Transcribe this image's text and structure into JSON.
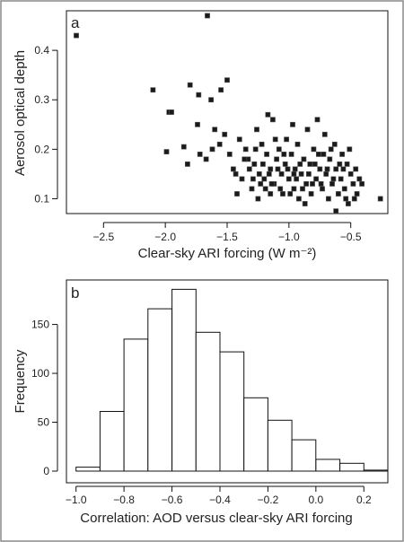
{
  "chart_data": [
    {
      "type": "scatter",
      "panel_label": "a",
      "xlabel": "Clear-sky ARI forcing (W m⁻²)",
      "ylabel": "Aerosol optical depth",
      "xlim": [
        -2.8,
        -0.2
      ],
      "ylim": [
        0.07,
        0.48
      ],
      "xticks": [
        -2.5,
        -2.0,
        -1.5,
        -1.0,
        -0.5
      ],
      "xtick_labels": [
        "−2.5",
        "−2.0",
        "−1.5",
        "−1.0",
        "−0.5"
      ],
      "yticks": [
        0.1,
        0.2,
        0.3,
        0.4
      ],
      "ytick_labels": [
        "0.1",
        "0.2",
        "0.3",
        "0.4"
      ],
      "grid": false,
      "marker_color": "#1a1a1a",
      "points": [
        [
          -2.72,
          0.43
        ],
        [
          -1.66,
          0.47
        ],
        [
          -2.1,
          0.32
        ],
        [
          -1.97,
          0.275
        ],
        [
          -1.95,
          0.275
        ],
        [
          -1.99,
          0.195
        ],
        [
          -1.8,
          0.33
        ],
        [
          -1.73,
          0.31
        ],
        [
          -1.63,
          0.3
        ],
        [
          -1.5,
          0.34
        ],
        [
          -1.55,
          0.32
        ],
        [
          -1.74,
          0.25
        ],
        [
          -1.6,
          0.24
        ],
        [
          -1.85,
          0.205
        ],
        [
          -1.82,
          0.17
        ],
        [
          -1.72,
          0.19
        ],
        [
          -1.67,
          0.18
        ],
        [
          -1.62,
          0.2
        ],
        [
          -1.56,
          0.21
        ],
        [
          -1.52,
          0.23
        ],
        [
          -1.48,
          0.19
        ],
        [
          -1.45,
          0.16
        ],
        [
          -1.4,
          0.22
        ],
        [
          -1.43,
          0.15
        ],
        [
          -1.38,
          0.14
        ],
        [
          -1.35,
          0.2
        ],
        [
          -1.33,
          0.18
        ],
        [
          -1.3,
          0.12
        ],
        [
          -1.28,
          0.17
        ],
        [
          -1.26,
          0.24
        ],
        [
          -1.24,
          0.15
        ],
        [
          -1.22,
          0.21
        ],
        [
          -1.2,
          0.14
        ],
        [
          -1.18,
          0.19
        ],
        [
          -1.17,
          0.27
        ],
        [
          -1.15,
          0.16
        ],
        [
          -1.13,
          0.26
        ],
        [
          -1.12,
          0.13
        ],
        [
          -1.1,
          0.18
        ],
        [
          -1.08,
          0.2
        ],
        [
          -1.06,
          0.15
        ],
        [
          -1.05,
          0.11
        ],
        [
          -1.03,
          0.17
        ],
        [
          -1.02,
          0.22
        ],
        [
          -1.0,
          0.14
        ],
        [
          -0.98,
          0.19
        ],
        [
          -0.96,
          0.12
        ],
        [
          -0.95,
          0.16
        ],
        [
          -0.93,
          0.21
        ],
        [
          -0.92,
          0.1
        ],
        [
          -0.9,
          0.15
        ],
        [
          -0.88,
          0.18
        ],
        [
          -0.86,
          0.13
        ],
        [
          -0.85,
          0.24
        ],
        [
          -0.83,
          0.17
        ],
        [
          -0.82,
          0.11
        ],
        [
          -0.8,
          0.2
        ],
        [
          -0.78,
          0.14
        ],
        [
          -0.77,
          0.26
        ],
        [
          -0.75,
          0.16
        ],
        [
          -0.73,
          0.12
        ],
        [
          -0.72,
          0.19
        ],
        [
          -0.7,
          0.15
        ],
        [
          -0.68,
          0.1
        ],
        [
          -0.67,
          0.18
        ],
        [
          -0.65,
          0.13
        ],
        [
          -0.63,
          0.21
        ],
        [
          -0.62,
          0.16
        ],
        [
          -0.6,
          0.11
        ],
        [
          -0.58,
          0.14
        ],
        [
          -0.57,
          0.19
        ],
        [
          -0.55,
          0.12
        ],
        [
          -0.53,
          0.17
        ],
        [
          -0.52,
          0.09
        ],
        [
          -0.5,
          0.15
        ],
        [
          -0.48,
          0.13
        ],
        [
          -0.46,
          0.16
        ],
        [
          -0.45,
          0.11
        ],
        [
          -0.43,
          0.14
        ],
        [
          -0.62,
          0.075
        ],
        [
          -1.25,
          0.1
        ],
        [
          -1.15,
          0.11
        ],
        [
          -1.32,
          0.16
        ],
        [
          -1.27,
          0.2
        ],
        [
          -1.11,
          0.22
        ],
        [
          -1.07,
          0.12
        ],
        [
          -0.97,
          0.25
        ],
        [
          -0.87,
          0.09
        ],
        [
          -0.71,
          0.23
        ],
        [
          -0.66,
          0.2
        ],
        [
          -0.59,
          0.17
        ],
        [
          -0.51,
          0.2
        ],
        [
          -0.47,
          0.1
        ],
        [
          -0.41,
          0.13
        ],
        [
          -0.26,
          0.1
        ],
        [
          -1.42,
          0.11
        ],
        [
          -1.36,
          0.18
        ],
        [
          -1.29,
          0.14
        ],
        [
          -1.21,
          0.17
        ],
        [
          -1.14,
          0.13
        ],
        [
          -1.09,
          0.16
        ],
        [
          -1.04,
          0.19
        ],
        [
          -0.99,
          0.11
        ],
        [
          -0.94,
          0.14
        ],
        [
          -0.89,
          0.12
        ],
        [
          -0.84,
          0.15
        ],
        [
          -0.79,
          0.17
        ],
        [
          -0.74,
          0.13
        ],
        [
          -0.69,
          0.16
        ],
        [
          -0.64,
          0.14
        ],
        [
          -0.56,
          0.16
        ],
        [
          -0.54,
          0.1
        ],
        [
          -1.19,
          0.12
        ],
        [
          -1.01,
          0.16
        ],
        [
          -0.91,
          0.17
        ],
        [
          -0.81,
          0.13
        ],
        [
          -0.76,
          0.19
        ],
        [
          -1.16,
          0.15
        ],
        [
          -1.23,
          0.13
        ],
        [
          -0.96,
          0.15
        ]
      ]
    },
    {
      "type": "bar",
      "subtype": "histogram",
      "panel_label": "b",
      "xlabel": "Correlation: AOD versus clear-sky ARI forcing",
      "ylabel": "Frequency",
      "bin_edges": [
        -1.0,
        -0.9,
        -0.8,
        -0.7,
        -0.6,
        -0.5,
        -0.4,
        -0.3,
        -0.2,
        -0.1,
        0.0,
        0.1,
        0.2,
        0.3
      ],
      "values": [
        4,
        61,
        135,
        166,
        186,
        142,
        122,
        75,
        52,
        32,
        12,
        8,
        1
      ],
      "xlim": [
        -1.04,
        0.3
      ],
      "ylim": [
        0,
        190
      ],
      "xticks": [
        -1.0,
        -0.8,
        -0.6,
        -0.4,
        -0.2,
        0.0,
        0.2
      ],
      "xtick_labels": [
        "−1.0",
        "−0.8",
        "−0.6",
        "−0.4",
        "−0.2",
        "0.0",
        "0.2"
      ],
      "yticks": [
        0,
        50,
        100,
        150
      ],
      "ytick_labels": [
        "0",
        "50",
        "100",
        "150"
      ],
      "grid": false,
      "bar_fill": "#ffffff",
      "bar_stroke": "#111111"
    }
  ]
}
